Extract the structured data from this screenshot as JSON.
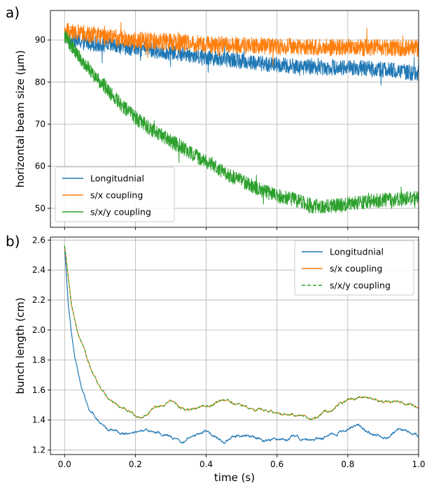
{
  "chart_data": [
    {
      "type": "line",
      "panel_label": "a)",
      "ylabel": "horizontal beam size (μm)",
      "xlim": [
        -0.04,
        1.0
      ],
      "ylim": [
        45.5,
        97
      ],
      "xticks": [
        0.0,
        0.2,
        0.4,
        0.6,
        0.8,
        1.0
      ],
      "yticks": [
        50,
        60,
        70,
        80,
        90
      ],
      "grid": true,
      "legend": "bottom-left",
      "series": [
        {
          "name": "Longitudnial",
          "color": "#1f77b4",
          "x": [
            0.0,
            0.02,
            0.05,
            0.1,
            0.15,
            0.2,
            0.3,
            0.4,
            0.5,
            0.6,
            0.7,
            0.8,
            0.9,
            0.95,
            1.0
          ],
          "y": [
            91,
            90,
            89.5,
            89,
            88.5,
            88,
            87,
            86,
            85,
            84,
            83.5,
            83.5,
            83,
            82.5,
            82
          ],
          "noise": 1.2
        },
        {
          "name": "s/x coupling",
          "color": "#ff7f0e",
          "x": [
            0.0,
            0.05,
            0.1,
            0.2,
            0.3,
            0.4,
            0.5,
            0.6,
            0.7,
            0.8,
            0.9,
            1.0
          ],
          "y": [
            92,
            91.5,
            91,
            90,
            89.5,
            89,
            88.7,
            88.5,
            88.3,
            88.2,
            88.2,
            88
          ],
          "noise": 1.3
        },
        {
          "name": "s/x/y coupling",
          "color": "#2ca02c",
          "x": [
            0.0,
            0.02,
            0.05,
            0.1,
            0.15,
            0.2,
            0.25,
            0.3,
            0.35,
            0.4,
            0.45,
            0.5,
            0.55,
            0.6,
            0.65,
            0.7,
            0.75,
            0.8,
            0.85,
            0.9,
            0.95,
            1.0
          ],
          "y": [
            91,
            88.5,
            85,
            80,
            75.5,
            71.5,
            68.5,
            66,
            63.5,
            61,
            58.5,
            56.5,
            54.5,
            53,
            52,
            50.5,
            50.5,
            51,
            51.5,
            52,
            52.2,
            52.5
          ],
          "noise": 1.1
        }
      ]
    },
    {
      "type": "line",
      "panel_label": "b)",
      "xlabel": "time (s)",
      "ylabel": "bunch length (cm)",
      "xlim": [
        -0.04,
        1.0
      ],
      "ylim": [
        1.17,
        2.62
      ],
      "xticks": [
        0.0,
        0.2,
        0.4,
        0.6,
        0.8,
        1.0
      ],
      "yticks": [
        1.2,
        1.4,
        1.6,
        1.8,
        2.0,
        2.2,
        2.4,
        2.6
      ],
      "grid": true,
      "legend": "top-right",
      "series": [
        {
          "name": "Longitudnial",
          "color": "#1f77b4",
          "x": [
            0.0,
            0.01,
            0.02,
            0.03,
            0.05,
            0.07,
            0.1,
            0.12,
            0.15,
            0.2,
            0.25,
            0.3,
            0.33,
            0.35,
            0.4,
            0.45,
            0.5,
            0.55,
            0.6,
            0.65,
            0.7,
            0.75,
            0.8,
            0.83,
            0.85,
            0.9,
            0.95,
            1.0
          ],
          "y": [
            2.56,
            2.2,
            1.98,
            1.8,
            1.6,
            1.47,
            1.38,
            1.34,
            1.32,
            1.31,
            1.33,
            1.3,
            1.24,
            1.28,
            1.33,
            1.26,
            1.3,
            1.28,
            1.27,
            1.29,
            1.26,
            1.3,
            1.34,
            1.38,
            1.33,
            1.28,
            1.33,
            1.29
          ],
          "noise": 0.012
        },
        {
          "name": "s/x coupling",
          "color": "#ff7f0e",
          "dash": "",
          "x": [
            0.0,
            0.01,
            0.02,
            0.04,
            0.06,
            0.08,
            0.1,
            0.12,
            0.15,
            0.2,
            0.22,
            0.25,
            0.3,
            0.35,
            0.4,
            0.45,
            0.5,
            0.55,
            0.6,
            0.65,
            0.7,
            0.75,
            0.8,
            0.85,
            0.9,
            0.95,
            1.0
          ],
          "y": [
            2.56,
            2.35,
            2.15,
            1.95,
            1.83,
            1.72,
            1.62,
            1.55,
            1.5,
            1.44,
            1.41,
            1.48,
            1.53,
            1.46,
            1.49,
            1.53,
            1.5,
            1.47,
            1.45,
            1.43,
            1.41,
            1.46,
            1.54,
            1.56,
            1.52,
            1.53,
            1.48
          ],
          "noise": 0.01
        },
        {
          "name": "s/x/y coupling",
          "color": "#2ca02c",
          "dash": "5,3",
          "x": [
            0.0,
            0.01,
            0.02,
            0.04,
            0.06,
            0.08,
            0.1,
            0.12,
            0.15,
            0.2,
            0.22,
            0.25,
            0.3,
            0.35,
            0.4,
            0.45,
            0.5,
            0.55,
            0.6,
            0.65,
            0.7,
            0.75,
            0.8,
            0.85,
            0.9,
            0.95,
            1.0
          ],
          "y": [
            2.56,
            2.35,
            2.15,
            1.95,
            1.83,
            1.72,
            1.62,
            1.55,
            1.5,
            1.44,
            1.41,
            1.48,
            1.53,
            1.46,
            1.49,
            1.53,
            1.5,
            1.47,
            1.45,
            1.43,
            1.41,
            1.46,
            1.54,
            1.56,
            1.52,
            1.53,
            1.48
          ],
          "noise": 0.01
        }
      ]
    }
  ]
}
